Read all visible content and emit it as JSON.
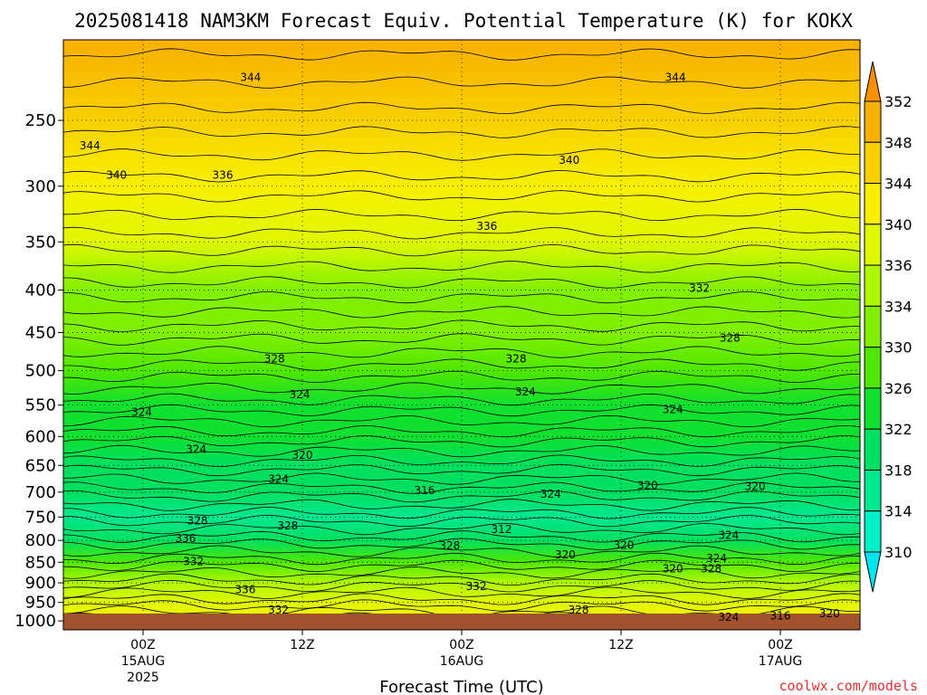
{
  "chart_data": {
    "type": "heatmap",
    "title": "2025081418 NAM3KM Forecast Equiv. Potential Temperature (K) for KOKX",
    "xlabel": "Forecast Time (UTC)",
    "ylabel": "",
    "y_ticks": [
      "250",
      "300",
      "350",
      "400",
      "450",
      "500",
      "550",
      "600",
      "650",
      "700",
      "750",
      "800",
      "850",
      "900",
      "950",
      "1000"
    ],
    "y_tick_values": [
      250,
      300,
      350,
      400,
      450,
      500,
      550,
      600,
      650,
      700,
      750,
      800,
      850,
      900,
      950,
      1000
    ],
    "ylim_hpa": [
      200,
      1025
    ],
    "x_ticks": [
      {
        "hour": 6,
        "label": "00Z",
        "sub1": "15AUG",
        "sub2": "2025"
      },
      {
        "hour": 18,
        "label": "12Z",
        "sub1": "",
        "sub2": ""
      },
      {
        "hour": 30,
        "label": "00Z",
        "sub1": "16AUG",
        "sub2": ""
      },
      {
        "hour": 42,
        "label": "12Z",
        "sub1": "",
        "sub2": ""
      },
      {
        "hour": 54,
        "label": "00Z",
        "sub1": "17AUG",
        "sub2": ""
      }
    ],
    "x_range_hours": [
      0,
      60
    ],
    "colorbar_levels": [
      310,
      314,
      318,
      322,
      326,
      330,
      334,
      336,
      340,
      344,
      348,
      352
    ],
    "colorbar_labels": [
      "352",
      "348",
      "344",
      "340",
      "336",
      "334",
      "330",
      "326",
      "322",
      "318",
      "314",
      "310"
    ],
    "colorbar_colors": [
      "#00e4f0",
      "#00f0c8",
      "#00e890",
      "#00e060",
      "#10e030",
      "#50e800",
      "#80f000",
      "#b0f800",
      "#e0f800",
      "#f8f000",
      "#f8d000",
      "#f8b000",
      "#f89000"
    ],
    "profile": [
      {
        "p": 200,
        "theta": 350
      },
      {
        "p": 250,
        "theta": 345
      },
      {
        "p": 300,
        "theta": 340
      },
      {
        "p": 350,
        "theta": 336
      },
      {
        "p": 400,
        "theta": 333
      },
      {
        "p": 450,
        "theta": 330
      },
      {
        "p": 500,
        "theta": 327
      },
      {
        "p": 550,
        "theta": 324
      },
      {
        "p": 600,
        "theta": 323
      },
      {
        "p": 650,
        "theta": 321
      },
      {
        "p": 700,
        "theta": 319
      },
      {
        "p": 750,
        "theta": 315
      },
      {
        "p": 800,
        "theta": 320
      },
      {
        "p": 850,
        "theta": 326
      },
      {
        "p": 900,
        "theta": 334
      },
      {
        "p": 950,
        "theta": 338
      },
      {
        "p": 1000,
        "theta": 340
      }
    ],
    "contour_labels": [
      {
        "text": "344",
        "hour": 14.1,
        "p": 222
      },
      {
        "text": "344",
        "hour": 2.0,
        "p": 268
      },
      {
        "text": "340",
        "hour": 4.0,
        "p": 291
      },
      {
        "text": "336",
        "hour": 12.0,
        "p": 291
      },
      {
        "text": "344",
        "hour": 46.1,
        "p": 222
      },
      {
        "text": "340",
        "hour": 38.1,
        "p": 279
      },
      {
        "text": "336",
        "hour": 31.9,
        "p": 335
      },
      {
        "text": "332",
        "hour": 47.9,
        "p": 398
      },
      {
        "text": "328",
        "hour": 15.9,
        "p": 484
      },
      {
        "text": "328",
        "hour": 34.1,
        "p": 484
      },
      {
        "text": "328",
        "hour": 50.2,
        "p": 457
      },
      {
        "text": "324",
        "hour": 5.9,
        "p": 561
      },
      {
        "text": "324",
        "hour": 17.8,
        "p": 534
      },
      {
        "text": "324",
        "hour": 34.8,
        "p": 530
      },
      {
        "text": "324",
        "hour": 45.9,
        "p": 557
      },
      {
        "text": "324",
        "hour": 10.0,
        "p": 622
      },
      {
        "text": "324",
        "hour": 16.2,
        "p": 675
      },
      {
        "text": "320",
        "hour": 18.0,
        "p": 632
      },
      {
        "text": "316",
        "hour": 27.2,
        "p": 697
      },
      {
        "text": "324",
        "hour": 36.7,
        "p": 704
      },
      {
        "text": "320",
        "hour": 44.0,
        "p": 687
      },
      {
        "text": "320",
        "hour": 52.1,
        "p": 689
      },
      {
        "text": "328",
        "hour": 10.1,
        "p": 758
      },
      {
        "text": "328",
        "hour": 16.9,
        "p": 768
      },
      {
        "text": "312",
        "hour": 33.0,
        "p": 776
      },
      {
        "text": "336",
        "hour": 9.2,
        "p": 796
      },
      {
        "text": "328",
        "hour": 29.1,
        "p": 812
      },
      {
        "text": "320",
        "hour": 37.8,
        "p": 832
      },
      {
        "text": "320",
        "hour": 42.2,
        "p": 811
      },
      {
        "text": "324",
        "hour": 50.1,
        "p": 789
      },
      {
        "text": "332",
        "hour": 9.8,
        "p": 848
      },
      {
        "text": "324",
        "hour": 49.2,
        "p": 841
      },
      {
        "text": "320",
        "hour": 45.9,
        "p": 866
      },
      {
        "text": "328",
        "hour": 48.8,
        "p": 866
      },
      {
        "text": "336",
        "hour": 13.7,
        "p": 917
      },
      {
        "text": "332",
        "hour": 31.1,
        "p": 909
      },
      {
        "text": "332",
        "hour": 16.2,
        "p": 970
      },
      {
        "text": "328",
        "hour": 38.8,
        "p": 970
      },
      {
        "text": "324",
        "hour": 50.1,
        "p": 990
      },
      {
        "text": "316",
        "hour": 54.0,
        "p": 986
      },
      {
        "text": "320",
        "hour": 57.7,
        "p": 980
      }
    ]
  },
  "credit": "coolwx.com/models"
}
